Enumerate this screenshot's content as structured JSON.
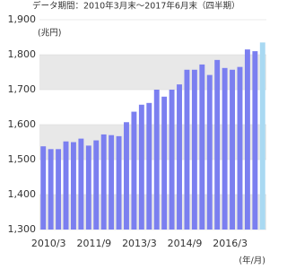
{
  "chart_data": {
    "type": "bar",
    "title": "データ期間：2010年3月末～2017年6月末（四半期）",
    "y_unit": "(兆円)",
    "x_unit": "(年/月)",
    "categories": [
      "2010/3",
      null,
      null,
      null,
      null,
      null,
      "2011/9",
      null,
      null,
      null,
      null,
      null,
      "2013/3",
      null,
      null,
      null,
      null,
      null,
      "2014/9",
      null,
      null,
      null,
      null,
      null,
      "2016/3",
      null,
      null,
      null,
      null,
      null
    ],
    "values": [
      1538,
      1530,
      1530,
      1552,
      1550,
      1560,
      1540,
      1555,
      1572,
      1570,
      1567,
      1607,
      1637,
      1657,
      1662,
      1700,
      1680,
      1700,
      1715,
      1757,
      1757,
      1772,
      1742,
      1785,
      1762,
      1757,
      1765,
      1815,
      1810,
      1835
    ],
    "color": "#7b7ff0",
    "last_color": "#a9d9f2",
    "band_color": "#e8e8e8",
    "ylim": [
      1300,
      1900
    ],
    "yticks": [
      {
        "value": 1300,
        "label": "1,300"
      },
      {
        "value": 1400,
        "label": "1,400"
      },
      {
        "value": 1500,
        "label": "1,500"
      },
      {
        "value": 1600,
        "label": "1,600"
      },
      {
        "value": 1700,
        "label": "1,700"
      },
      {
        "value": 1800,
        "label": "1,800"
      },
      {
        "value": 1900,
        "label": "1,900"
      }
    ],
    "grid": true
  }
}
